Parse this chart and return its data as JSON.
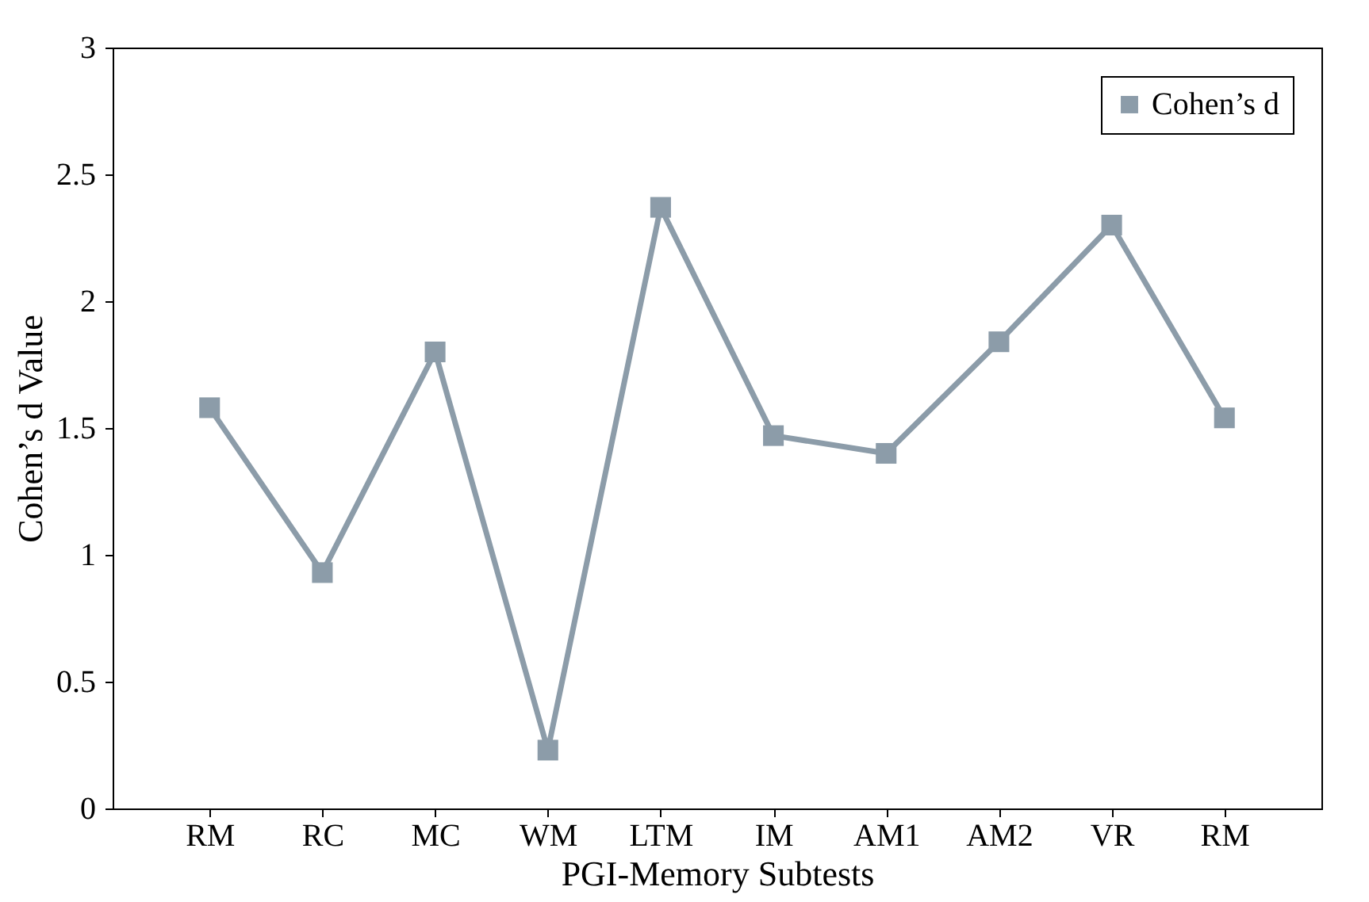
{
  "chart_data": {
    "type": "line",
    "xlabel": "PGI-Memory Subtests",
    "ylabel": "Cohen’s d Value",
    "categories": [
      "RM",
      "RC",
      "MC",
      "WM",
      "LTM",
      "IM",
      "AM1",
      "AM2",
      "VR",
      "RM"
    ],
    "series": [
      {
        "name": "Cohen’s d",
        "color": "#8c9ca9",
        "values": [
          1.58,
          0.93,
          1.8,
          0.23,
          2.37,
          1.47,
          1.4,
          1.84,
          2.3,
          1.54
        ]
      }
    ],
    "ylim": [
      0,
      3
    ],
    "yticks": [
      0,
      {
        "value": 0.5,
        "label": "0.5"
      },
      1,
      {
        "value": 1.5,
        "label": "1.5"
      },
      2,
      {
        "value": 2.5,
        "label": "2.5"
      },
      3
    ],
    "grid": false,
    "legend": "top right",
    "marker": "square",
    "line_style": "solid"
  }
}
